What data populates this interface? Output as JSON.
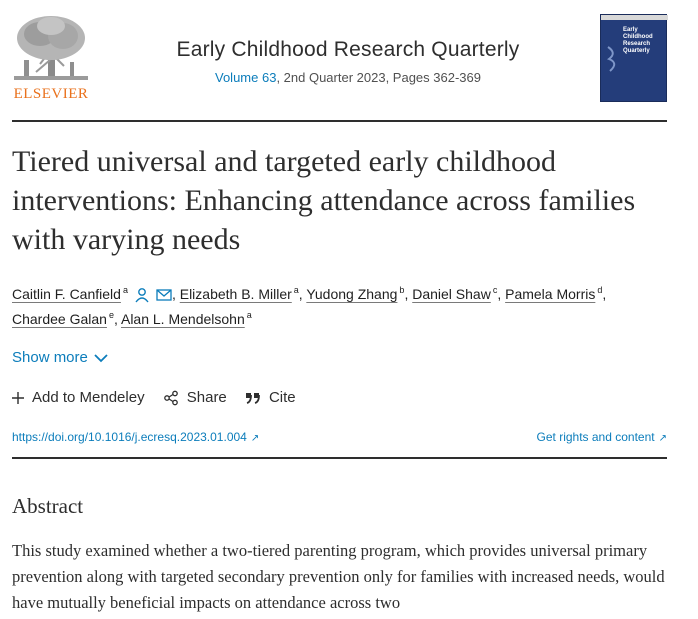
{
  "publisher": {
    "name": "ELSEVIER"
  },
  "journal": {
    "title": "Early Childhood Research Quarterly",
    "volume_link": "Volume 63",
    "issue_info": ", 2nd Quarter 2023, Pages 362-369",
    "cover_title": "Early Childhood Research Quarterly"
  },
  "article": {
    "title": "Tiered universal and targeted early childhood interventions: Enhancing attendance across families with varying needs"
  },
  "authors": [
    {
      "name": "Caitlin F. Canfield",
      "sup": "a"
    },
    {
      "name": "Elizabeth B. Miller",
      "sup": "a"
    },
    {
      "name": "Yudong Zhang",
      "sup": "b"
    },
    {
      "name": "Daniel Shaw",
      "sup": "c"
    },
    {
      "name": "Pamela Morris",
      "sup": "d"
    },
    {
      "name": "Chardee Galan",
      "sup": "e"
    },
    {
      "name": "Alan L. Mendelsohn",
      "sup": "a"
    }
  ],
  "show_more": "Show more",
  "actions": {
    "mendeley": "Add to Mendeley",
    "share": "Share",
    "cite": "Cite"
  },
  "links": {
    "doi": "https://doi.org/10.1016/j.ecresq.2023.01.004",
    "rights": "Get rights and content",
    "ext_glyph": "↗"
  },
  "abstract": {
    "heading": "Abstract",
    "text": "This study examined whether a two-tiered parenting program, which provides universal primary prevention along with targeted secondary prevention only for families with increased needs, would have mutually beneficial impacts on attendance across two"
  },
  "colors": {
    "link": "#0c7dbb",
    "elsevier_orange": "#e9711c",
    "cover": "#243d7a"
  },
  "icons": {
    "author_profile": "person-icon",
    "email": "envelope-icon",
    "expand": "chevron-down-icon",
    "add": "plus-icon",
    "share": "share-icon",
    "cite": "quote-icon"
  }
}
